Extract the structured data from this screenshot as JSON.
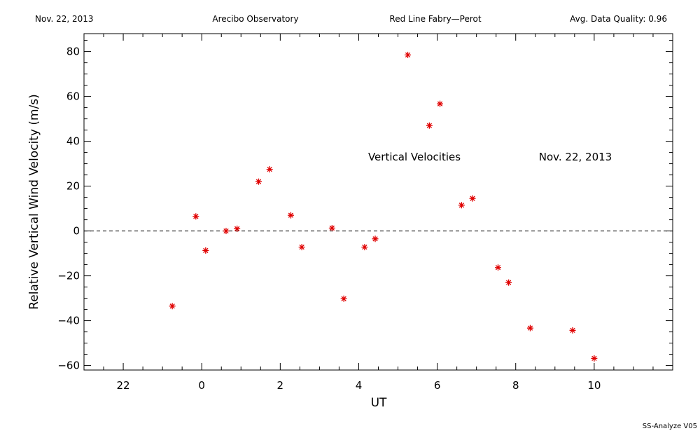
{
  "header": {
    "date": "Nov. 22, 2013",
    "observatory": "Arecibo Observatory",
    "instrument": "Red Line Fabry—Perot",
    "quality": "Avg. Data Quality: 0.96"
  },
  "footer": {
    "version": "SS-Analyze V05"
  },
  "chart_data": {
    "type": "scatter",
    "xlabel": "UT",
    "ylabel": "Relative Vertical Wind Velocity (m/s)",
    "xlim": [
      21,
      36
    ],
    "ylim": [
      -62,
      88
    ],
    "x_ticks": [
      22,
      24,
      26,
      28,
      30,
      32,
      34
    ],
    "x_tick_labels": [
      "22",
      "0",
      "2",
      "4",
      "6",
      "8",
      "10"
    ],
    "y_ticks": [
      -60,
      -40,
      -20,
      0,
      20,
      40,
      60,
      80
    ],
    "y_tick_labels": [
      "−60",
      "−40",
      "−20",
      "0",
      "20",
      "40",
      "60",
      "80"
    ],
    "reference_line": {
      "y": 0,
      "style": "dashed"
    },
    "annotations": [
      "Vertical Velocities",
      "Nov. 22, 2013"
    ],
    "marker": "asterisk",
    "marker_color": "#e00000",
    "series": [
      {
        "x": [
          23.25,
          23.85,
          24.1,
          24.62,
          24.9,
          25.45,
          25.73,
          26.27,
          26.55,
          27.32,
          27.62,
          28.15,
          28.42,
          29.25,
          29.8,
          30.07,
          30.62,
          30.9,
          31.55,
          31.82,
          32.37,
          33.45,
          34.0
        ],
        "y": [
          -33.5,
          6.5,
          -8.7,
          0,
          1,
          22,
          27.5,
          7,
          -7.2,
          1.3,
          -30.2,
          -7.2,
          -3.5,
          78.5,
          47,
          56.7,
          11.5,
          14.5,
          -16.3,
          -23,
          -43.3,
          -44.3,
          -56.8
        ]
      }
    ]
  }
}
